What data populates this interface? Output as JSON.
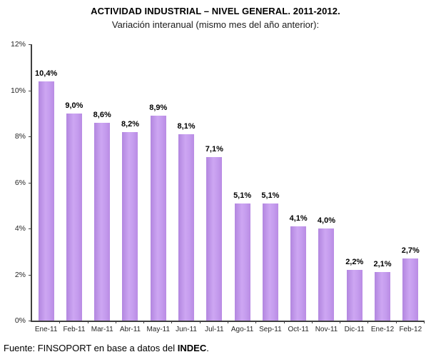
{
  "header": {
    "title": "ACTIVIDAD INDUSTRIAL – NIVEL GENERAL. 2011-2012.",
    "subtitle": "Variación interanual (mismo mes del año anterior):"
  },
  "footer": {
    "prefix": "Fuente: FINSOPORT en base a datos del ",
    "bold": "INDEC",
    "suffix": "."
  },
  "chart_data": {
    "type": "bar",
    "title": "ACTIVIDAD INDUSTRIAL – NIVEL GENERAL. 2011-2012.",
    "subtitle": "Variación interanual (mismo mes del año anterior):",
    "categories": [
      "Ene-11",
      "Feb-11",
      "Mar-11",
      "Abr-11",
      "May-11",
      "Jun-11",
      "Jul-11",
      "Ago-11",
      "Sep-11",
      "Oct-11",
      "Nov-11",
      "Dic-11",
      "Ene-12",
      "Feb-12"
    ],
    "values": [
      10.4,
      9.0,
      8.6,
      8.2,
      8.9,
      8.1,
      7.1,
      5.1,
      5.1,
      4.1,
      4.0,
      2.2,
      2.1,
      2.7
    ],
    "value_labels": [
      "10,4%",
      "9,0%",
      "8,6%",
      "8,2%",
      "8,9%",
      "8,1%",
      "7,1%",
      "5,1%",
      "5,1%",
      "4,1%",
      "4,0%",
      "2,2%",
      "2,1%",
      "2,7%"
    ],
    "xlabel": "",
    "ylabel": "",
    "ylim": [
      0,
      12
    ],
    "ytick_values": [
      0,
      2,
      4,
      6,
      8,
      10,
      12
    ],
    "ytick_labels": [
      "0%",
      "2%",
      "4%",
      "6%",
      "8%",
      "10%",
      "12%"
    ],
    "grid": false,
    "legend": null,
    "bar_color": "#BE93E8",
    "axis_color": "#3F3F3F"
  }
}
